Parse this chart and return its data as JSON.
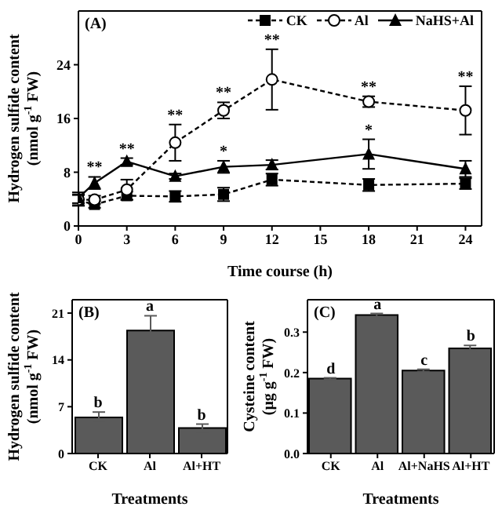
{
  "chart_data": [
    {
      "type": "line",
      "title": "(A)",
      "xlabel": "Time course (h)",
      "ylabel": "Hydrogen sulfide content (nmol g$^{-1}$ FW)",
      "x": [
        0,
        1,
        3,
        6,
        9,
        12,
        18,
        24
      ],
      "xlim": [
        0,
        25
      ],
      "xticks": [
        0,
        3,
        6,
        9,
        12,
        15,
        18,
        21,
        24
      ],
      "ylim": [
        0,
        32
      ],
      "yticks": [
        0,
        8,
        16,
        24
      ],
      "grid": false,
      "legend": "top right",
      "series": [
        {
          "name": "CK",
          "color": "#000000",
          "marker": "square",
          "line_style": "dashed",
          "values": [
            3.8,
            3.2,
            4.5,
            4.4,
            4.7,
            6.9,
            6.1,
            6.3
          ],
          "errors": [
            0.8,
            0.5,
            0.6,
            0.8,
            1.0,
            0.9,
            0.9,
            0.8
          ]
        },
        {
          "name": "Al",
          "color": "#000000",
          "marker": "circle",
          "line_style": "dashed",
          "values": [
            3.9,
            3.9,
            5.4,
            12.4,
            17.2,
            21.8,
            18.5,
            17.2
          ],
          "errors": [
            0.8,
            0.6,
            1.5,
            2.7,
            1.2,
            4.5,
            0.8,
            3.6
          ]
        },
        {
          "name": "NaHS+Al",
          "color": "#000000",
          "marker": "triangle",
          "line_style": "solid",
          "values": [
            4.2,
            6.4,
            9.6,
            7.4,
            8.8,
            9.1,
            10.7,
            8.5
          ],
          "errors": [
            0.8,
            0.9,
            0.5,
            0.4,
            0.9,
            0.7,
            2.2,
            1.2
          ]
        }
      ],
      "annotations": [
        {
          "text": "**",
          "x": 1,
          "y": 6.4
        },
        {
          "text": "**",
          "x": 3,
          "y": 9.6
        },
        {
          "text": "**",
          "x": 6,
          "y": 12.4
        },
        {
          "text": "**",
          "x": 9,
          "y": 17.2
        },
        {
          "text": "*",
          "x": 9,
          "y": 8.8
        },
        {
          "text": "**",
          "x": 12,
          "y": 21.8
        },
        {
          "text": "**",
          "x": 18,
          "y": 18.5
        },
        {
          "text": "*",
          "x": 18,
          "y": 10.7
        },
        {
          "text": "**",
          "x": 24,
          "y": 17.2
        }
      ]
    },
    {
      "type": "bar",
      "title": "(B)",
      "xlabel": "Treatments",
      "ylabel": "Hydrogen sulfide content (nmol g$^{-1}$ FW)",
      "categories": [
        "CK",
        "Al",
        "Al+HT"
      ],
      "ylim": [
        0,
        23
      ],
      "yticks": [
        0,
        7,
        14,
        21
      ],
      "grid": false,
      "legend": false,
      "series": [
        {
          "color": "#5a5a5a",
          "values": [
            5.4,
            18.4,
            3.8
          ],
          "errors": [
            0.8,
            2.2,
            0.6
          ]
        }
      ],
      "annotations": [
        {
          "text": "b",
          "x": "CK",
          "y": 5.4
        },
        {
          "text": "a",
          "x": "Al",
          "y": 18.4
        },
        {
          "text": "b",
          "x": "Al+HT",
          "y": 3.8
        }
      ]
    },
    {
      "type": "bar",
      "title": "(C)",
      "xlabel": "Treatments",
      "ylabel": "Cysteine content (μg g$^{-1}$ FW)",
      "categories": [
        "CK",
        "Al",
        "Al+NaHS",
        "Al+HT"
      ],
      "ylim": [
        0,
        0.38
      ],
      "yticks": [
        {
          "value": 0,
          "label": "0.0"
        },
        0.1,
        0.2,
        0.3
      ],
      "grid": false,
      "legend": false,
      "series": [
        {
          "color": "#5a5a5a",
          "values": [
            0.185,
            0.342,
            0.205,
            0.26
          ],
          "errors": [
            0.002,
            0.004,
            0.003,
            0.007
          ]
        }
      ],
      "annotations": [
        {
          "text": "d",
          "x": "CK",
          "y": 0.185
        },
        {
          "text": "a",
          "x": "Al",
          "y": 0.342
        },
        {
          "text": "c",
          "x": "Al+NaHS",
          "y": 0.205
        },
        {
          "text": "b",
          "x": "Al+HT",
          "y": 0.26
        }
      ]
    }
  ]
}
